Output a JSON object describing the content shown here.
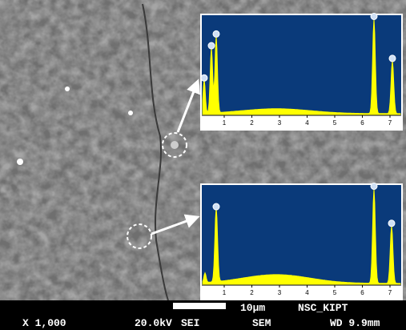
{
  "footer": {
    "magnification": "X 1,000",
    "voltage": "20.0kV",
    "detector": "SEI",
    "mode": "SEM",
    "working_distance": "WD 9.9mm",
    "scale": "10µm",
    "lab": "NSC_KIPT"
  },
  "spectra": [
    {
      "x_ticks": [
        1,
        2,
        3,
        4,
        5,
        6,
        7
      ]
    },
    {
      "x_ticks": [
        1,
        2,
        3,
        4,
        5,
        6,
        7
      ]
    }
  ]
}
